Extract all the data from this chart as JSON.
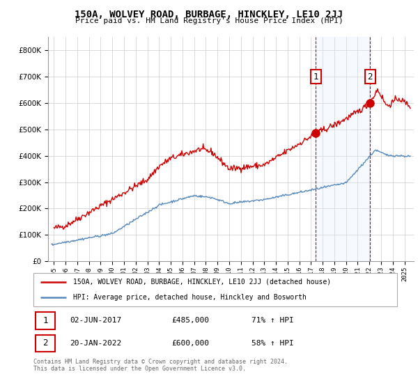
{
  "title": "150A, WOLVEY ROAD, BURBAGE, HINCKLEY, LE10 2JJ",
  "subtitle": "Price paid vs. HM Land Registry's House Price Index (HPI)",
  "legend_line1": "150A, WOLVEY ROAD, BURBAGE, HINCKLEY, LE10 2JJ (detached house)",
  "legend_line2": "HPI: Average price, detached house, Hinckley and Bosworth",
  "footnote": "Contains HM Land Registry data © Crown copyright and database right 2024.\nThis data is licensed under the Open Government Licence v3.0.",
  "sale1_label": "1",
  "sale1_date": "02-JUN-2017",
  "sale1_price": "£485,000",
  "sale1_hpi": "71% ↑ HPI",
  "sale2_label": "2",
  "sale2_date": "20-JAN-2022",
  "sale2_price": "£600,000",
  "sale2_hpi": "58% ↑ HPI",
  "red_color": "#cc0000",
  "blue_color": "#5588bb",
  "shade_color": "#ddeeff",
  "grid_color": "#cccccc",
  "background_color": "#ffffff",
  "sale1_x": 2017.42,
  "sale1_y": 485000,
  "sale2_x": 2022.05,
  "sale2_y": 600000,
  "ylim": [
    0,
    850000
  ],
  "xlim": [
    1994.5,
    2025.8
  ],
  "yticks": [
    0,
    100000,
    200000,
    300000,
    400000,
    500000,
    600000,
    700000,
    800000
  ],
  "xticks": [
    1995,
    1996,
    1997,
    1998,
    1999,
    2000,
    2001,
    2002,
    2003,
    2004,
    2005,
    2006,
    2007,
    2008,
    2009,
    2010,
    2011,
    2012,
    2013,
    2014,
    2015,
    2016,
    2017,
    2018,
    2019,
    2020,
    2021,
    2022,
    2023,
    2024,
    2025
  ]
}
